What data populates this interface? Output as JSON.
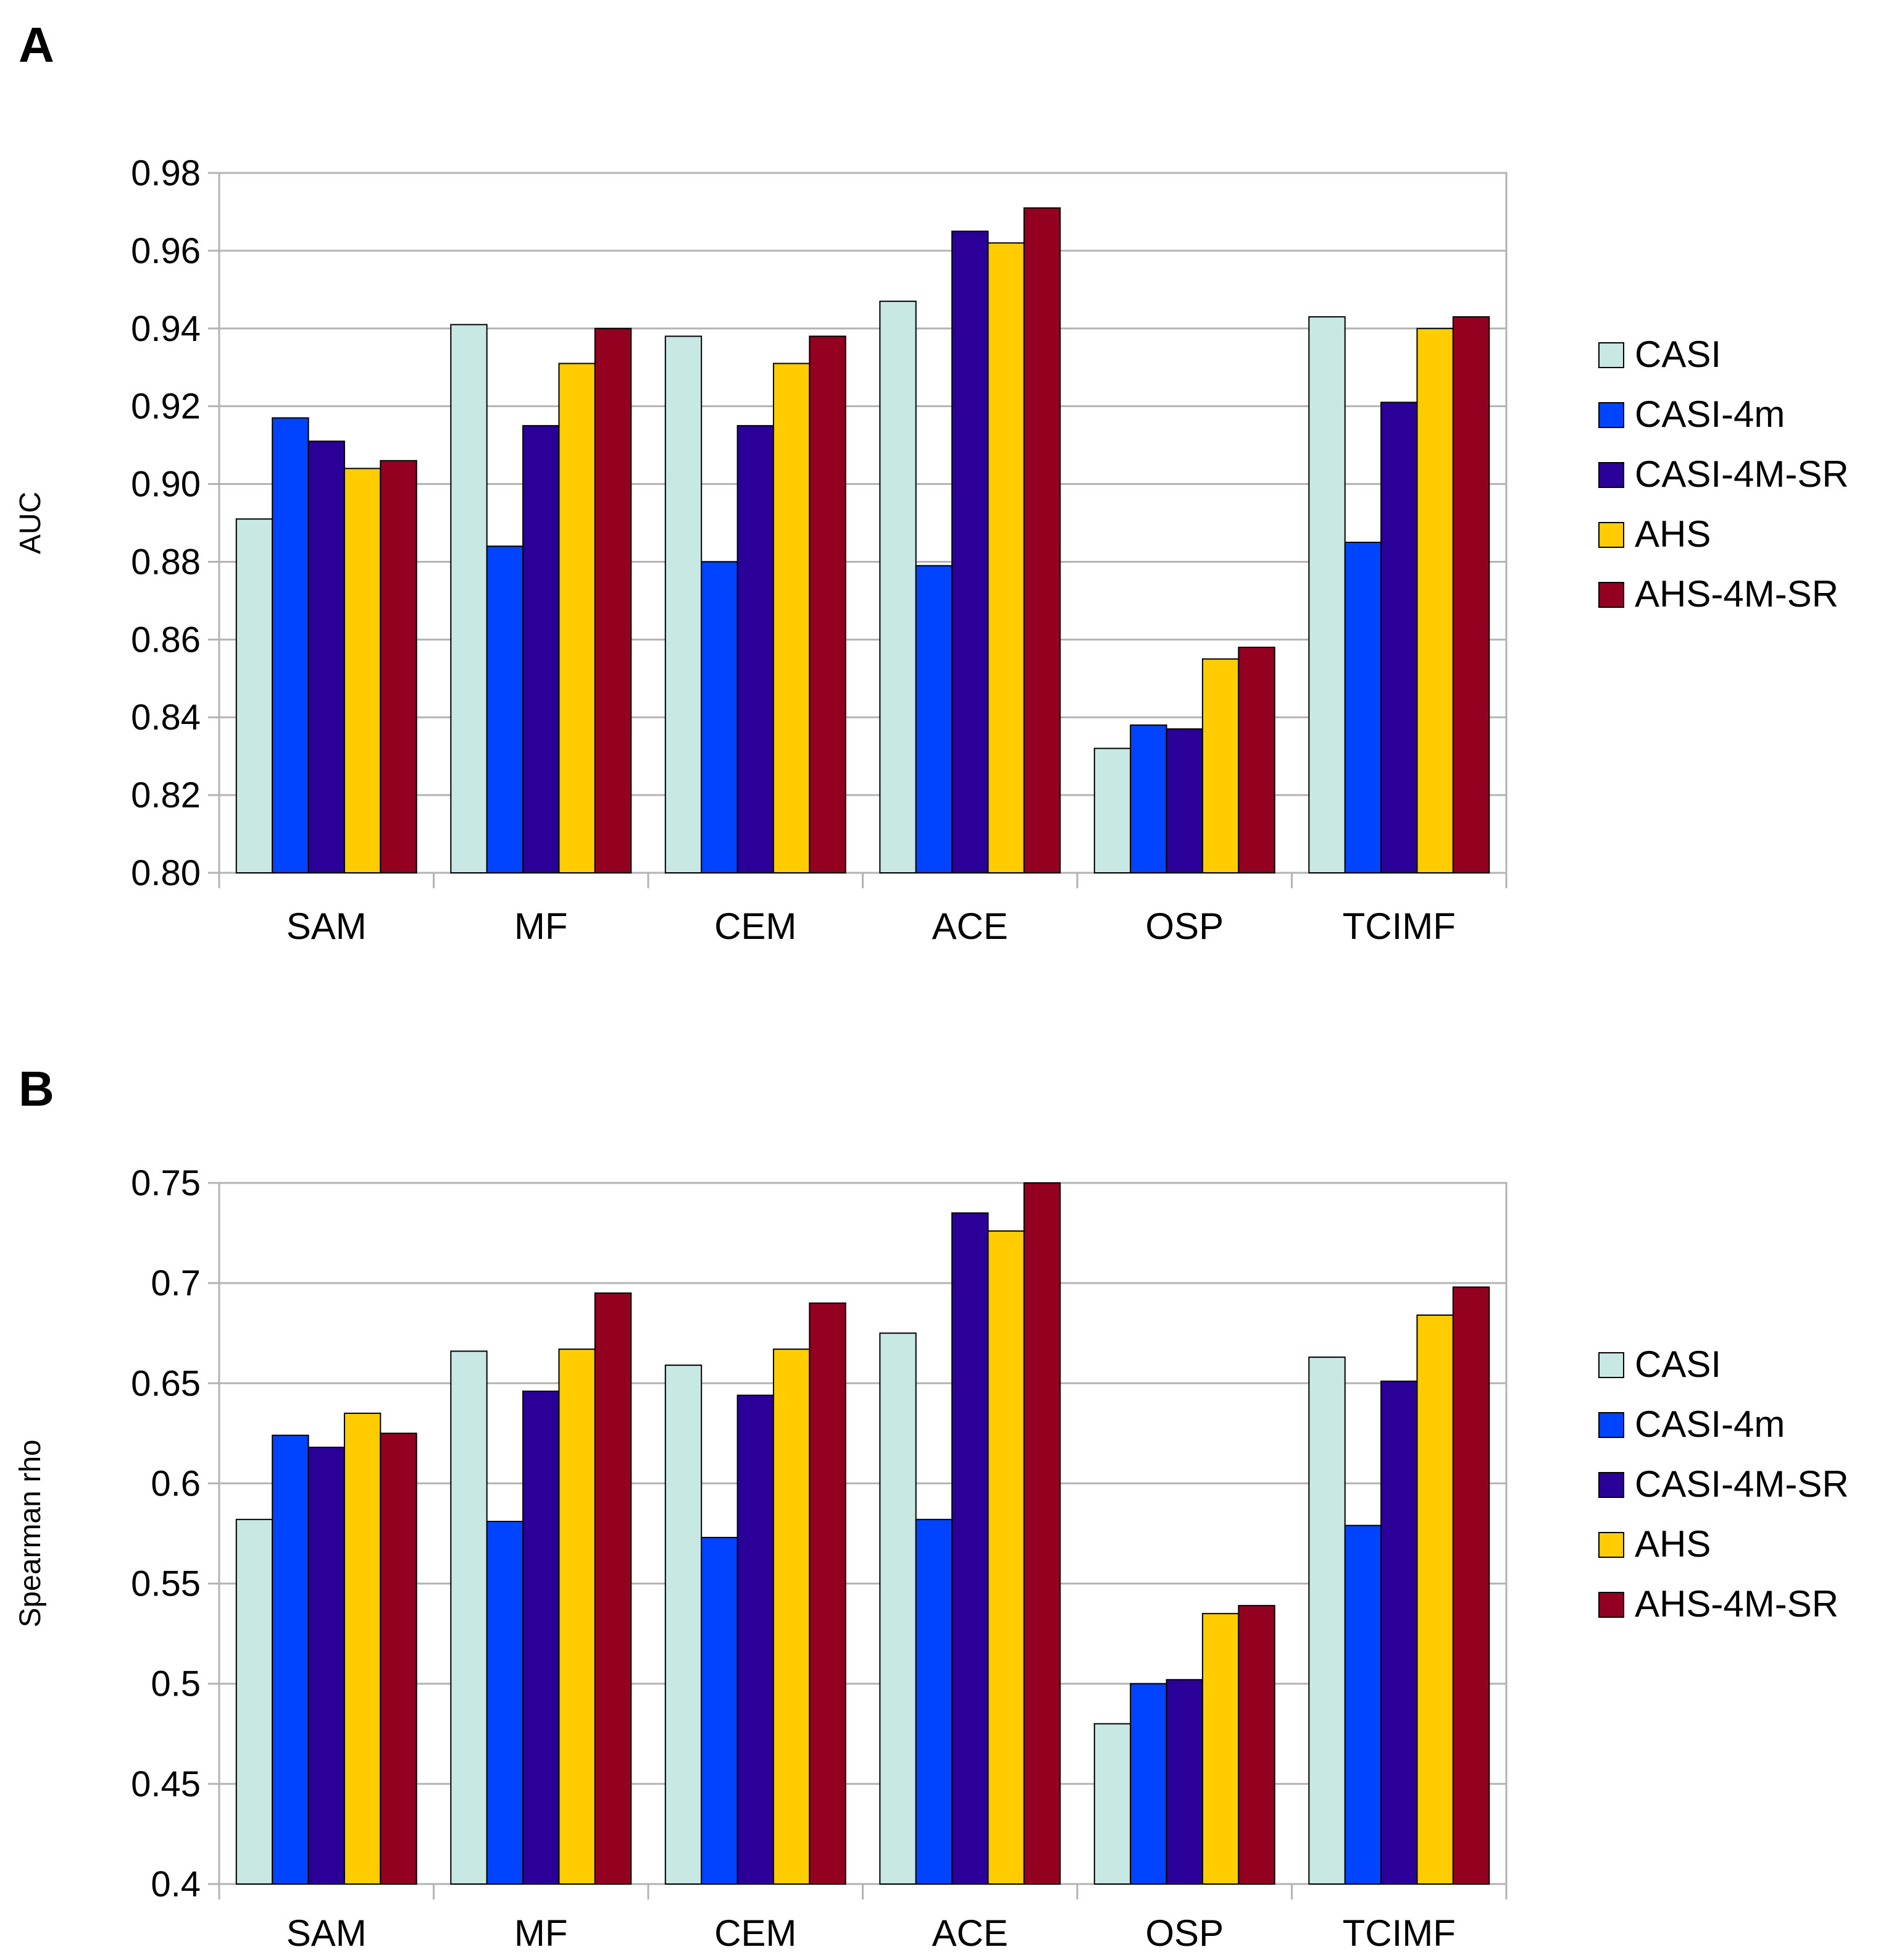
{
  "chart_data": [
    {
      "panel": "A",
      "type": "bar",
      "title": "",
      "xlabel": "",
      "ylabel": "AUC",
      "ylim": [
        0.8,
        0.98
      ],
      "yticks": [
        "0.80",
        "0.82",
        "0.84",
        "0.86",
        "0.88",
        "0.90",
        "0.92",
        "0.94",
        "0.96",
        "0.98"
      ],
      "grid": true,
      "legend_position": "right",
      "categories": [
        "SAM",
        "MF",
        "CEM",
        "ACE",
        "OSP",
        "TCIMF"
      ],
      "series": [
        {
          "name": "CASI",
          "color": "#c8e8e4",
          "values": [
            0.891,
            0.941,
            0.938,
            0.947,
            0.832,
            0.943
          ]
        },
        {
          "name": "CASI-4m",
          "color": "#0044ff",
          "values": [
            0.917,
            0.884,
            0.88,
            0.879,
            0.838,
            0.885
          ]
        },
        {
          "name": "CASI-4M-SR",
          "color": "#2a0099",
          "values": [
            0.911,
            0.915,
            0.915,
            0.965,
            0.837,
            0.921
          ]
        },
        {
          "name": "AHS",
          "color": "#ffcc00",
          "values": [
            0.904,
            0.931,
            0.931,
            0.962,
            0.855,
            0.94
          ]
        },
        {
          "name": "AHS-4M-SR",
          "color": "#940020",
          "values": [
            0.906,
            0.94,
            0.938,
            0.971,
            0.858,
            0.943
          ]
        }
      ]
    },
    {
      "panel": "B",
      "type": "bar",
      "title": "",
      "xlabel": "",
      "ylabel": "Spearman rho",
      "ylim": [
        0.4,
        0.75
      ],
      "yticks": [
        "0.4",
        "0.45",
        "0.5",
        "0.55",
        "0.6",
        "0.65",
        "0.7",
        "0.75"
      ],
      "grid": true,
      "legend_position": "right",
      "categories": [
        "SAM",
        "MF",
        "CEM",
        "ACE",
        "OSP",
        "TCIMF"
      ],
      "series": [
        {
          "name": "CASI",
          "color": "#c8e8e4",
          "values": [
            0.582,
            0.666,
            0.659,
            0.675,
            0.48,
            0.663
          ]
        },
        {
          "name": "CASI-4m",
          "color": "#0044ff",
          "values": [
            0.624,
            0.581,
            0.573,
            0.582,
            0.5,
            0.579
          ]
        },
        {
          "name": "CASI-4M-SR",
          "color": "#2a0099",
          "values": [
            0.618,
            0.646,
            0.644,
            0.735,
            0.502,
            0.651
          ]
        },
        {
          "name": "AHS",
          "color": "#ffcc00",
          "values": [
            0.635,
            0.667,
            0.667,
            0.726,
            0.535,
            0.684
          ]
        },
        {
          "name": "AHS-4M-SR",
          "color": "#940020",
          "values": [
            0.625,
            0.695,
            0.69,
            0.75,
            0.539,
            0.698
          ]
        }
      ]
    }
  ]
}
